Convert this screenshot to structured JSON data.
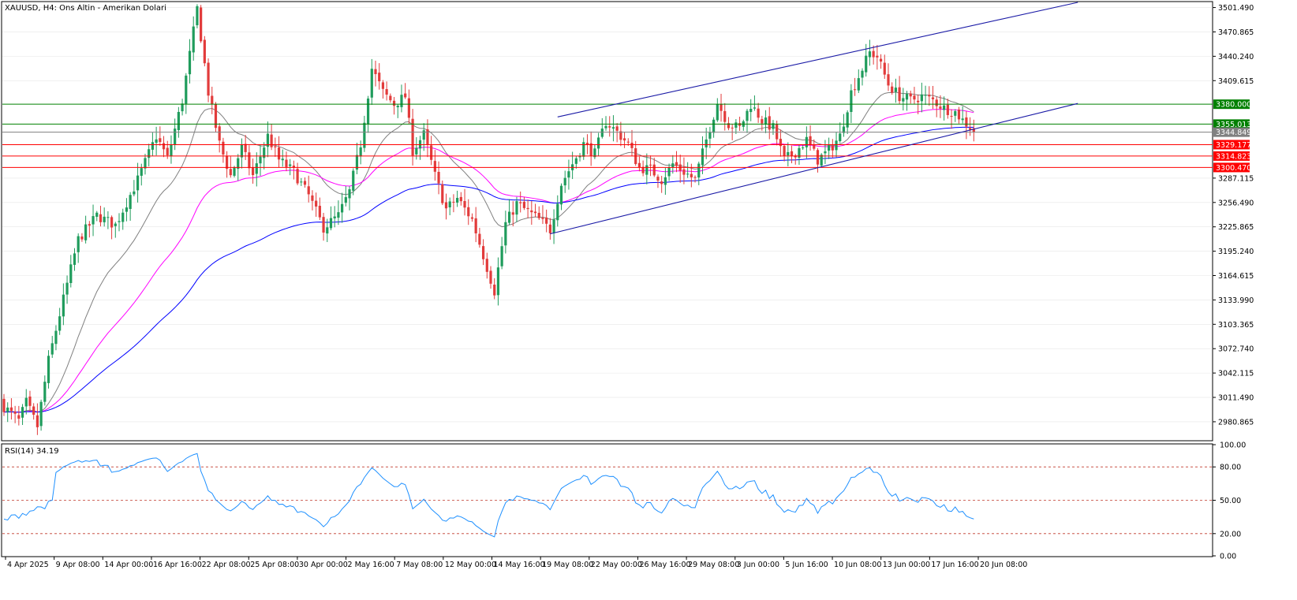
{
  "chart_data": {
    "type": "candlestick",
    "symbol_label": "XAUUSD, H4:  Ons Altin - Amerikan Dolari",
    "y_ticks": [
      "3501.490",
      "3470.865",
      "3440.240",
      "3409.615",
      "3287.115",
      "3256.490",
      "3225.865",
      "3195.240",
      "3164.615",
      "3133.990",
      "3103.365",
      "3072.740",
      "3042.115",
      "3011.490",
      "2980.865"
    ],
    "ylim": [
      2958.0,
      3508.0
    ],
    "x_ticks": [
      "4 Apr 2025",
      "9 Apr 08:00",
      "14 Apr 00:00",
      "16 Apr 16:00",
      "22 Apr 08:00",
      "25 Apr 08:00",
      "30 Apr 00:00",
      "2 May 16:00",
      "7 May 08:00",
      "12 May 00:00",
      "14 May 16:00",
      "19 May 08:00",
      "22 May 00:00",
      "26 May 16:00",
      "29 May 08:00",
      "3 Jun 00:00",
      "5 Jun 16:00",
      "10 Jun 08:00",
      "13 Jun 00:00",
      "17 Jun 16:00",
      "20 Jun 08:00"
    ],
    "bar_count": 262,
    "horizontal_levels": [
      {
        "price": 3380.0,
        "label": "3380.000",
        "color": "#008000"
      },
      {
        "price": 3355.013,
        "label": "3355.013",
        "color": "#008000"
      },
      {
        "price": 3344.849,
        "label": "3344.849",
        "color": "#808080"
      },
      {
        "price": 3329.177,
        "label": "3329.177",
        "color": "#ff0000"
      },
      {
        "price": 3314.823,
        "label": "3314.823",
        "color": "#ff0000"
      },
      {
        "price": 3300.47,
        "label": "3300.470",
        "color": "#ff0000"
      }
    ],
    "channel": {
      "upper": [
        {
          "bar": 149,
          "price": 3364
        },
        {
          "bar": 289,
          "price": 3508
        }
      ],
      "lower": [
        {
          "bar": 147,
          "price": 3217
        },
        {
          "bar": 289,
          "price": 3381
        }
      ]
    },
    "anchors": [
      {
        "bar": 0,
        "price": 3000
      },
      {
        "bar": 4,
        "price": 2982
      },
      {
        "bar": 6,
        "price": 3005
      },
      {
        "bar": 9,
        "price": 2975
      },
      {
        "bar": 12,
        "price": 3058
      },
      {
        "bar": 16,
        "price": 3135
      },
      {
        "bar": 20,
        "price": 3210
      },
      {
        "bar": 25,
        "price": 3240
      },
      {
        "bar": 30,
        "price": 3228
      },
      {
        "bar": 36,
        "price": 3285
      },
      {
        "bar": 41,
        "price": 3340
      },
      {
        "bar": 44,
        "price": 3312
      },
      {
        "bar": 48,
        "price": 3385
      },
      {
        "bar": 52,
        "price": 3500
      },
      {
        "bar": 55,
        "price": 3395
      },
      {
        "bar": 58,
        "price": 3330
      },
      {
        "bar": 61,
        "price": 3290
      },
      {
        "bar": 64,
        "price": 3325
      },
      {
        "bar": 67,
        "price": 3290
      },
      {
        "bar": 71,
        "price": 3340
      },
      {
        "bar": 74,
        "price": 3310
      },
      {
        "bar": 78,
        "price": 3295
      },
      {
        "bar": 82,
        "price": 3265
      },
      {
        "bar": 86,
        "price": 3225
      },
      {
        "bar": 90,
        "price": 3240
      },
      {
        "bar": 93,
        "price": 3270
      },
      {
        "bar": 96,
        "price": 3330
      },
      {
        "bar": 99,
        "price": 3425
      },
      {
        "bar": 102,
        "price": 3395
      },
      {
        "bar": 105,
        "price": 3380
      },
      {
        "bar": 108,
        "price": 3390
      },
      {
        "bar": 110,
        "price": 3322
      },
      {
        "bar": 113,
        "price": 3342
      },
      {
        "bar": 116,
        "price": 3290
      },
      {
        "bar": 119,
        "price": 3248
      },
      {
        "bar": 122,
        "price": 3262
      },
      {
        "bar": 126,
        "price": 3235
      },
      {
        "bar": 129,
        "price": 3190
      },
      {
        "bar": 132,
        "price": 3145
      },
      {
        "bar": 135,
        "price": 3230
      },
      {
        "bar": 138,
        "price": 3255
      },
      {
        "bar": 141,
        "price": 3245
      },
      {
        "bar": 144,
        "price": 3235
      },
      {
        "bar": 147,
        "price": 3222
      },
      {
        "bar": 150,
        "price": 3280
      },
      {
        "bar": 153,
        "price": 3305
      },
      {
        "bar": 156,
        "price": 3330
      },
      {
        "bar": 159,
        "price": 3318
      },
      {
        "bar": 162,
        "price": 3358
      },
      {
        "bar": 165,
        "price": 3345
      },
      {
        "bar": 168,
        "price": 3330
      },
      {
        "bar": 171,
        "price": 3300
      },
      {
        "bar": 174,
        "price": 3298
      },
      {
        "bar": 177,
        "price": 3285
      },
      {
        "bar": 180,
        "price": 3305
      },
      {
        "bar": 183,
        "price": 3295
      },
      {
        "bar": 186,
        "price": 3285
      },
      {
        "bar": 189,
        "price": 3335
      },
      {
        "bar": 192,
        "price": 3382
      },
      {
        "bar": 195,
        "price": 3355
      },
      {
        "bar": 198,
        "price": 3350
      },
      {
        "bar": 201,
        "price": 3380
      },
      {
        "bar": 204,
        "price": 3360
      },
      {
        "bar": 207,
        "price": 3350
      },
      {
        "bar": 210,
        "price": 3310
      },
      {
        "bar": 213,
        "price": 3320
      },
      {
        "bar": 216,
        "price": 3335
      },
      {
        "bar": 219,
        "price": 3310
      },
      {
        "bar": 222,
        "price": 3322
      },
      {
        "bar": 225,
        "price": 3340
      },
      {
        "bar": 228,
        "price": 3395
      },
      {
        "bar": 231,
        "price": 3425
      },
      {
        "bar": 233,
        "price": 3445
      },
      {
        "bar": 235,
        "price": 3440
      },
      {
        "bar": 238,
        "price": 3405
      },
      {
        "bar": 241,
        "price": 3390
      },
      {
        "bar": 244,
        "price": 3385
      },
      {
        "bar": 247,
        "price": 3390
      },
      {
        "bar": 250,
        "price": 3385
      },
      {
        "bar": 253,
        "price": 3375
      },
      {
        "bar": 256,
        "price": 3370
      },
      {
        "bar": 258,
        "price": 3360
      },
      {
        "bar": 261,
        "price": 3347
      }
    ],
    "moving_averages": [
      {
        "period": 20,
        "color": "#808080"
      },
      {
        "period": 50,
        "color": "#ff00ff"
      },
      {
        "period": 100,
        "color": "#0000ff"
      }
    ],
    "rsi": {
      "label": "RSI(14) 34.19",
      "ticks": [
        "100.00",
        "80.00",
        "50.00",
        "20.00",
        "0.00"
      ],
      "levels": [
        80,
        50,
        20
      ]
    },
    "colors": {
      "bull": "#1f9c5c",
      "bear": "#e23b3b",
      "rsi_line": "#1e90ff"
    }
  }
}
